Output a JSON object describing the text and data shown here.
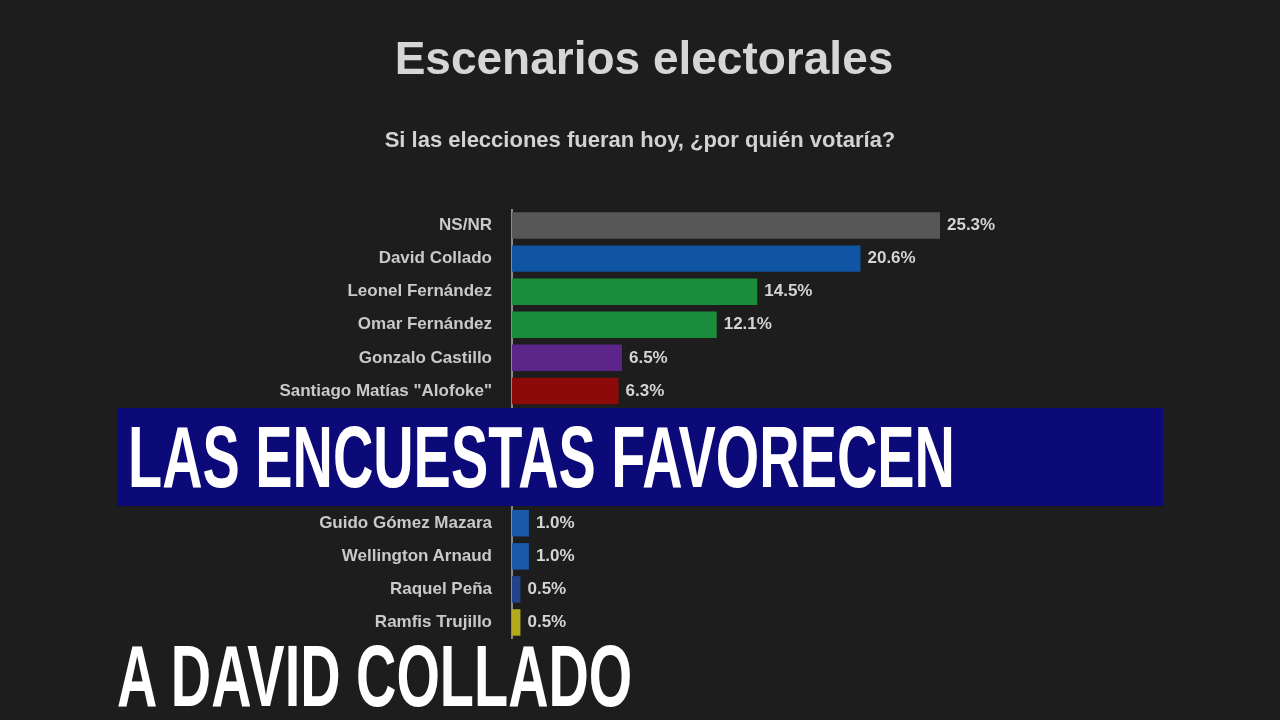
{
  "chart_data": {
    "type": "bar",
    "orientation": "horizontal",
    "title": "Escenarios electorales",
    "subtitle": "Si las elecciones fueran hoy, ¿por quién votaría?",
    "categories": [
      "NS/NR",
      "David Collado",
      "Leonel Fernández",
      "Omar Fernández",
      "Gonzalo Castillo",
      "Santiago Matías \"Alofoke\"",
      null,
      null,
      null,
      "Guido Gómez Mazara",
      "Wellington Arnaud",
      "Raquel Peña",
      "Ramfis Trujillo"
    ],
    "values": [
      25.3,
      20.6,
      14.5,
      12.1,
      6.5,
      6.3,
      null,
      null,
      null,
      1.0,
      1.0,
      0.5,
      0.5
    ],
    "colors": [
      "#575757",
      "#0f55a3",
      "#1b8c3b",
      "#1b8c3b",
      "#5b2589",
      "#8c0a0a",
      null,
      null,
      null,
      "#1a5aa8",
      "#1a5aa8",
      "#24428a",
      "#b3aa1e"
    ],
    "value_labels": [
      "25.3%",
      "20.6%",
      "14.5%",
      "12.1%",
      "6.5%",
      "6.3%",
      null,
      null,
      null,
      "1.0%",
      "1.0%",
      "0.5%",
      "0.5%"
    ],
    "tick_labels": "y",
    "annotations": [
      "LAS ENCUESTAS FAVORECEN",
      "A DAVID COLLADO"
    ]
  }
}
